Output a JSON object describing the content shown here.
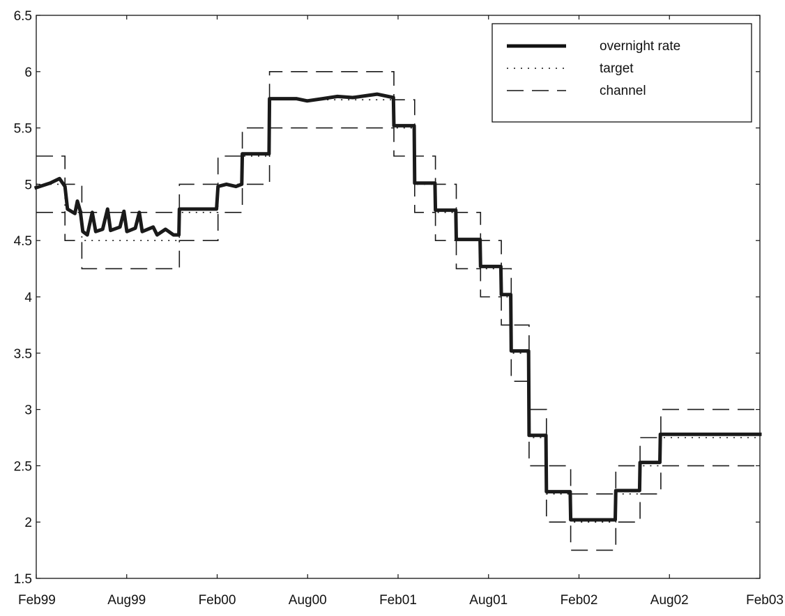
{
  "chart_data": {
    "type": "line",
    "title": "",
    "xlabel": "",
    "ylabel": "",
    "x_tick_labels": [
      "Feb99",
      "Aug99",
      "Feb00",
      "Aug00",
      "Feb01",
      "Aug01",
      "Feb02",
      "Aug02",
      "Feb03"
    ],
    "x_range": [
      "1999-02-01",
      "2003-02-01"
    ],
    "ylim": [
      1.5,
      6.5
    ],
    "y_ticks": [
      1.5,
      2,
      2.5,
      3,
      3.5,
      4,
      4.5,
      5,
      5.5,
      6,
      6.5
    ],
    "y_tick_labels": [
      "1.5",
      "2",
      "2.5",
      "3",
      "3.5",
      "4",
      "4.5",
      "5",
      "5.5",
      "6",
      "6.5"
    ],
    "grid": false,
    "legend": {
      "position": "top-right",
      "entries": [
        "overnight rate",
        "target",
        "channel"
      ]
    },
    "series": [
      {
        "name": "overnight rate",
        "style": "solid-thick",
        "color": "#1a1a1a",
        "points": [
          [
            "1999-02-01",
            4.97
          ],
          [
            "1999-03-01",
            5.01
          ],
          [
            "1999-03-20",
            5.05
          ],
          [
            "1999-03-31",
            4.98
          ],
          [
            "1999-04-05",
            4.78
          ],
          [
            "1999-04-20",
            4.74
          ],
          [
            "1999-04-25",
            4.85
          ],
          [
            "1999-05-01",
            4.76
          ],
          [
            "1999-05-06",
            4.58
          ],
          [
            "1999-05-15",
            4.55
          ],
          [
            "1999-05-25",
            4.75
          ],
          [
            "1999-06-01",
            4.58
          ],
          [
            "1999-06-15",
            4.6
          ],
          [
            "1999-06-25",
            4.78
          ],
          [
            "1999-07-01",
            4.59
          ],
          [
            "1999-07-20",
            4.62
          ],
          [
            "1999-07-28",
            4.76
          ],
          [
            "1999-08-03",
            4.58
          ],
          [
            "1999-08-20",
            4.61
          ],
          [
            "1999-08-28",
            4.75
          ],
          [
            "1999-09-03",
            4.58
          ],
          [
            "1999-09-25",
            4.62
          ],
          [
            "1999-10-03",
            4.55
          ],
          [
            "1999-10-20",
            4.6
          ],
          [
            "1999-11-05",
            4.55
          ],
          [
            "1999-11-16",
            4.55
          ],
          [
            "1999-11-17",
            4.78
          ],
          [
            "2000-01-31",
            4.78
          ],
          [
            "2000-02-03",
            4.98
          ],
          [
            "2000-02-20",
            5.0
          ],
          [
            "2000-03-10",
            4.98
          ],
          [
            "2000-03-22",
            5.0
          ],
          [
            "2000-03-23",
            5.27
          ],
          [
            "2000-05-16",
            5.27
          ],
          [
            "2000-05-17",
            5.76
          ],
          [
            "2000-07-10",
            5.76
          ],
          [
            "2000-08-01",
            5.74
          ],
          [
            "2000-09-01",
            5.76
          ],
          [
            "2000-10-01",
            5.78
          ],
          [
            "2000-11-01",
            5.77
          ],
          [
            "2000-12-20",
            5.8
          ],
          [
            "2001-01-22",
            5.77
          ],
          [
            "2001-01-23",
            5.52
          ],
          [
            "2001-03-05",
            5.52
          ],
          [
            "2001-03-06",
            5.01
          ],
          [
            "2001-04-16",
            5.01
          ],
          [
            "2001-04-17",
            4.77
          ],
          [
            "2001-05-28",
            4.77
          ],
          [
            "2001-05-29",
            4.51
          ],
          [
            "2001-07-16",
            4.51
          ],
          [
            "2001-07-17",
            4.27
          ],
          [
            "2001-08-27",
            4.27
          ],
          [
            "2001-08-28",
            4.02
          ],
          [
            "2001-09-16",
            4.02
          ],
          [
            "2001-09-17",
            3.52
          ],
          [
            "2001-10-22",
            3.52
          ],
          [
            "2001-10-23",
            2.77
          ],
          [
            "2001-11-26",
            2.77
          ],
          [
            "2001-11-27",
            2.27
          ],
          [
            "2002-01-14",
            2.27
          ],
          [
            "2002-01-15",
            2.02
          ],
          [
            "2002-04-15",
            2.02
          ],
          [
            "2002-04-16",
            2.28
          ],
          [
            "2002-06-03",
            2.28
          ],
          [
            "2002-06-04",
            2.53
          ],
          [
            "2002-07-14",
            2.53
          ],
          [
            "2002-07-15",
            2.78
          ],
          [
            "2003-02-01",
            2.78
          ]
        ]
      },
      {
        "name": "target",
        "style": "dotted",
        "color": "#1a1a1a",
        "steps": [
          [
            "1999-02-01",
            5.0
          ],
          [
            "1999-03-31",
            4.75
          ],
          [
            "1999-05-04",
            4.5
          ],
          [
            "1999-11-17",
            4.75
          ],
          [
            "2000-02-03",
            5.0
          ],
          [
            "2000-03-23",
            5.25
          ],
          [
            "2000-05-17",
            5.75
          ],
          [
            "2001-01-23",
            5.5
          ],
          [
            "2001-03-06",
            5.0
          ],
          [
            "2001-04-17",
            4.75
          ],
          [
            "2001-05-29",
            4.5
          ],
          [
            "2001-07-17",
            4.25
          ],
          [
            "2001-08-28",
            4.0
          ],
          [
            "2001-09-17",
            3.5
          ],
          [
            "2001-10-23",
            2.75
          ],
          [
            "2001-11-27",
            2.25
          ],
          [
            "2002-01-15",
            2.0
          ],
          [
            "2002-04-16",
            2.25
          ],
          [
            "2002-06-04",
            2.5
          ],
          [
            "2002-07-16",
            2.75
          ],
          [
            "2003-02-01",
            2.75
          ]
        ]
      },
      {
        "name": "channel",
        "style": "dashed",
        "color": "#1a1a1a",
        "steps": [
          [
            "1999-02-01",
            5.25,
            4.75
          ],
          [
            "1999-03-31",
            5.0,
            4.5
          ],
          [
            "1999-05-04",
            4.75,
            4.25
          ],
          [
            "1999-11-17",
            5.0,
            4.5
          ],
          [
            "2000-02-03",
            5.25,
            4.75
          ],
          [
            "2000-03-23",
            5.5,
            5.0
          ],
          [
            "2000-05-17",
            6.0,
            5.5
          ],
          [
            "2001-01-23",
            5.75,
            5.25
          ],
          [
            "2001-03-06",
            5.25,
            4.75
          ],
          [
            "2001-04-17",
            5.0,
            4.5
          ],
          [
            "2001-05-29",
            4.75,
            4.25
          ],
          [
            "2001-07-17",
            4.5,
            4.0
          ],
          [
            "2001-08-28",
            4.25,
            3.75
          ],
          [
            "2001-09-17",
            3.75,
            3.25
          ],
          [
            "2001-10-23",
            3.0,
            2.5
          ],
          [
            "2001-11-27",
            2.5,
            2.0
          ],
          [
            "2002-01-15",
            2.25,
            1.75
          ],
          [
            "2002-04-16",
            2.5,
            2.0
          ],
          [
            "2002-06-04",
            2.75,
            2.25
          ],
          [
            "2002-07-16",
            3.0,
            2.5
          ],
          [
            "2003-02-01",
            3.0,
            2.5
          ]
        ]
      }
    ]
  }
}
